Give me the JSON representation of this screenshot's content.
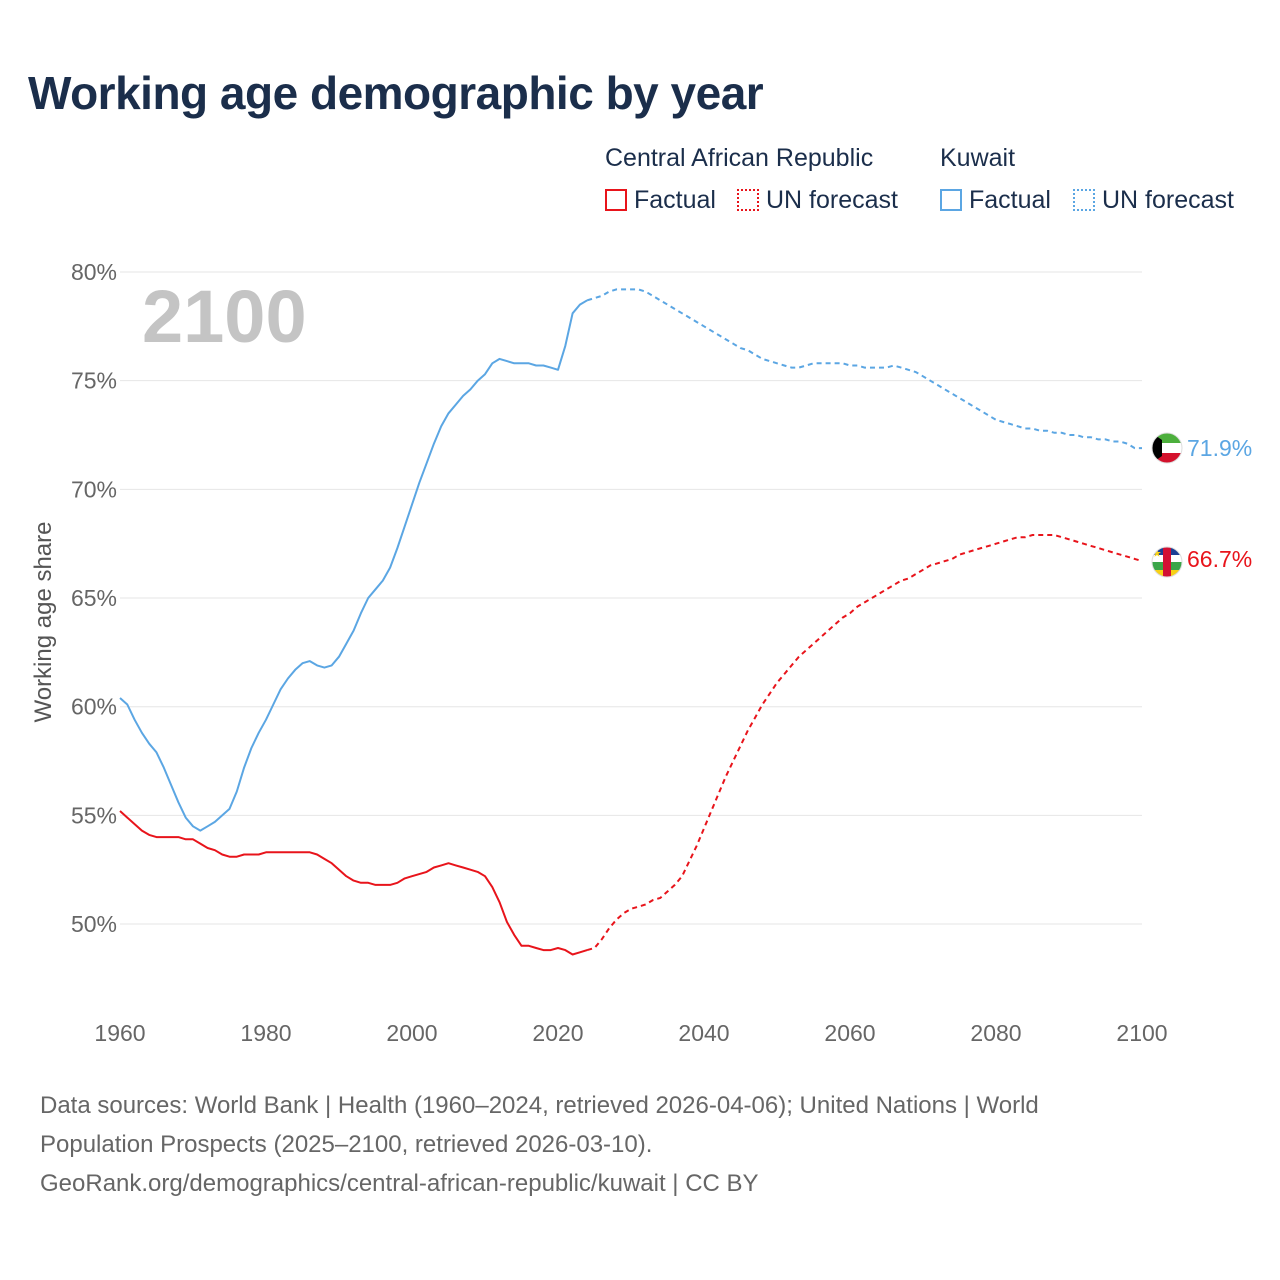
{
  "title": "Working age demographic by year",
  "legend": {
    "groups": [
      {
        "name": "Central African Republic",
        "factual_label": "Factual",
        "forecast_label": "UN forecast",
        "color": "#e8141b"
      },
      {
        "name": "Kuwait",
        "factual_label": "Factual",
        "forecast_label": "UN forecast",
        "color": "#5ba6e3"
      }
    ]
  },
  "year_watermark": "2100",
  "footer": {
    "line1": "Data sources: World Bank | Health (1960–2024, retrieved 2026-04-06); United Nations | World",
    "line2": "Population Prospects (2025–2100, retrieved 2026-03-10).",
    "line3": "GeoRank.org/demographics/central-african-republic/kuwait | CC BY"
  },
  "chart_data": {
    "type": "line",
    "title": "Working age demographic by year",
    "xlabel": "",
    "ylabel": "Working age share",
    "xlim": [
      1960,
      2100
    ],
    "ylim": [
      46,
      80
    ],
    "x_ticks": [
      1960,
      1980,
      2000,
      2020,
      2040,
      2060,
      2080,
      2100
    ],
    "y_ticks": [
      50,
      55,
      60,
      65,
      70,
      75,
      80
    ],
    "y_tick_labels": [
      "50%",
      "55%",
      "60%",
      "65%",
      "70%",
      "75%",
      "80%"
    ],
    "factual_range": [
      1960,
      2024
    ],
    "forecast_range": [
      2024,
      2100
    ],
    "series": [
      {
        "name": "Central African Republic",
        "color": "#e8141b",
        "end_label": "66.7%",
        "points": [
          [
            1960,
            55.2
          ],
          [
            1961,
            54.9
          ],
          [
            1962,
            54.6
          ],
          [
            1963,
            54.3
          ],
          [
            1964,
            54.1
          ],
          [
            1965,
            54.0
          ],
          [
            1966,
            54.0
          ],
          [
            1967,
            54.0
          ],
          [
            1968,
            54.0
          ],
          [
            1969,
            53.9
          ],
          [
            1970,
            53.9
          ],
          [
            1971,
            53.7
          ],
          [
            1972,
            53.5
          ],
          [
            1973,
            53.4
          ],
          [
            1974,
            53.2
          ],
          [
            1975,
            53.1
          ],
          [
            1976,
            53.1
          ],
          [
            1977,
            53.2
          ],
          [
            1978,
            53.2
          ],
          [
            1979,
            53.2
          ],
          [
            1980,
            53.3
          ],
          [
            1981,
            53.3
          ],
          [
            1982,
            53.3
          ],
          [
            1983,
            53.3
          ],
          [
            1984,
            53.3
          ],
          [
            1985,
            53.3
          ],
          [
            1986,
            53.3
          ],
          [
            1987,
            53.2
          ],
          [
            1988,
            53.0
          ],
          [
            1989,
            52.8
          ],
          [
            1990,
            52.5
          ],
          [
            1991,
            52.2
          ],
          [
            1992,
            52.0
          ],
          [
            1993,
            51.9
          ],
          [
            1994,
            51.9
          ],
          [
            1995,
            51.8
          ],
          [
            1996,
            51.8
          ],
          [
            1997,
            51.8
          ],
          [
            1998,
            51.9
          ],
          [
            1999,
            52.1
          ],
          [
            2000,
            52.2
          ],
          [
            2001,
            52.3
          ],
          [
            2002,
            52.4
          ],
          [
            2003,
            52.6
          ],
          [
            2004,
            52.7
          ],
          [
            2005,
            52.8
          ],
          [
            2006,
            52.7
          ],
          [
            2007,
            52.6
          ],
          [
            2008,
            52.5
          ],
          [
            2009,
            52.4
          ],
          [
            2010,
            52.2
          ],
          [
            2011,
            51.7
          ],
          [
            2012,
            51.0
          ],
          [
            2013,
            50.1
          ],
          [
            2014,
            49.5
          ],
          [
            2015,
            49.0
          ],
          [
            2016,
            49.0
          ],
          [
            2017,
            48.9
          ],
          [
            2018,
            48.8
          ],
          [
            2019,
            48.8
          ],
          [
            2020,
            48.9
          ],
          [
            2021,
            48.8
          ],
          [
            2022,
            48.6
          ],
          [
            2023,
            48.7
          ],
          [
            2024,
            48.8
          ],
          [
            2025,
            48.9
          ],
          [
            2026,
            49.3
          ],
          [
            2027,
            49.8
          ],
          [
            2028,
            50.2
          ],
          [
            2029,
            50.5
          ],
          [
            2030,
            50.7
          ],
          [
            2031,
            50.8
          ],
          [
            2032,
            50.9
          ],
          [
            2033,
            51.1
          ],
          [
            2034,
            51.2
          ],
          [
            2035,
            51.5
          ],
          [
            2036,
            51.8
          ],
          [
            2037,
            52.2
          ],
          [
            2038,
            52.9
          ],
          [
            2039,
            53.6
          ],
          [
            2040,
            54.4
          ],
          [
            2041,
            55.2
          ],
          [
            2042,
            56.0
          ],
          [
            2043,
            56.8
          ],
          [
            2044,
            57.5
          ],
          [
            2045,
            58.2
          ],
          [
            2046,
            58.9
          ],
          [
            2047,
            59.5
          ],
          [
            2048,
            60.1
          ],
          [
            2049,
            60.6
          ],
          [
            2050,
            61.1
          ],
          [
            2051,
            61.5
          ],
          [
            2052,
            61.9
          ],
          [
            2053,
            62.3
          ],
          [
            2054,
            62.6
          ],
          [
            2055,
            62.9
          ],
          [
            2056,
            63.2
          ],
          [
            2057,
            63.5
          ],
          [
            2058,
            63.8
          ],
          [
            2059,
            64.1
          ],
          [
            2060,
            64.3
          ],
          [
            2061,
            64.6
          ],
          [
            2062,
            64.8
          ],
          [
            2063,
            65.0
          ],
          [
            2064,
            65.2
          ],
          [
            2065,
            65.4
          ],
          [
            2066,
            65.6
          ],
          [
            2067,
            65.8
          ],
          [
            2068,
            65.9
          ],
          [
            2069,
            66.1
          ],
          [
            2070,
            66.3
          ],
          [
            2071,
            66.5
          ],
          [
            2072,
            66.6
          ],
          [
            2073,
            66.7
          ],
          [
            2074,
            66.8
          ],
          [
            2075,
            67.0
          ],
          [
            2076,
            67.1
          ],
          [
            2077,
            67.2
          ],
          [
            2078,
            67.3
          ],
          [
            2079,
            67.4
          ],
          [
            2080,
            67.5
          ],
          [
            2081,
            67.6
          ],
          [
            2082,
            67.7
          ],
          [
            2083,
            67.8
          ],
          [
            2084,
            67.8
          ],
          [
            2085,
            67.9
          ],
          [
            2086,
            67.9
          ],
          [
            2087,
            67.9
          ],
          [
            2088,
            67.9
          ],
          [
            2089,
            67.8
          ],
          [
            2090,
            67.7
          ],
          [
            2091,
            67.6
          ],
          [
            2092,
            67.5
          ],
          [
            2093,
            67.4
          ],
          [
            2094,
            67.3
          ],
          [
            2095,
            67.2
          ],
          [
            2096,
            67.1
          ],
          [
            2097,
            67.0
          ],
          [
            2098,
            66.9
          ],
          [
            2099,
            66.8
          ],
          [
            2100,
            66.7
          ]
        ]
      },
      {
        "name": "Kuwait",
        "color": "#5ba6e3",
        "end_label": "71.9%",
        "points": [
          [
            1960,
            60.4
          ],
          [
            1961,
            60.1
          ],
          [
            1962,
            59.4
          ],
          [
            1963,
            58.8
          ],
          [
            1964,
            58.3
          ],
          [
            1965,
            57.9
          ],
          [
            1966,
            57.2
          ],
          [
            1967,
            56.4
          ],
          [
            1968,
            55.6
          ],
          [
            1969,
            54.9
          ],
          [
            1970,
            54.5
          ],
          [
            1971,
            54.3
          ],
          [
            1972,
            54.5
          ],
          [
            1973,
            54.7
          ],
          [
            1974,
            55.0
          ],
          [
            1975,
            55.3
          ],
          [
            1976,
            56.1
          ],
          [
            1977,
            57.2
          ],
          [
            1978,
            58.1
          ],
          [
            1979,
            58.8
          ],
          [
            1980,
            59.4
          ],
          [
            1981,
            60.1
          ],
          [
            1982,
            60.8
          ],
          [
            1983,
            61.3
          ],
          [
            1984,
            61.7
          ],
          [
            1985,
            62.0
          ],
          [
            1986,
            62.1
          ],
          [
            1987,
            61.9
          ],
          [
            1988,
            61.8
          ],
          [
            1989,
            61.9
          ],
          [
            1990,
            62.3
          ],
          [
            1991,
            62.9
          ],
          [
            1992,
            63.5
          ],
          [
            1993,
            64.3
          ],
          [
            1994,
            65.0
          ],
          [
            1995,
            65.4
          ],
          [
            1996,
            65.8
          ],
          [
            1997,
            66.4
          ],
          [
            1998,
            67.3
          ],
          [
            1999,
            68.3
          ],
          [
            2000,
            69.3
          ],
          [
            2001,
            70.3
          ],
          [
            2002,
            71.2
          ],
          [
            2003,
            72.1
          ],
          [
            2004,
            72.9
          ],
          [
            2005,
            73.5
          ],
          [
            2006,
            73.9
          ],
          [
            2007,
            74.3
          ],
          [
            2008,
            74.6
          ],
          [
            2009,
            75.0
          ],
          [
            2010,
            75.3
          ],
          [
            2011,
            75.8
          ],
          [
            2012,
            76.0
          ],
          [
            2013,
            75.9
          ],
          [
            2014,
            75.8
          ],
          [
            2015,
            75.8
          ],
          [
            2016,
            75.8
          ],
          [
            2017,
            75.7
          ],
          [
            2018,
            75.7
          ],
          [
            2019,
            75.6
          ],
          [
            2020,
            75.5
          ],
          [
            2021,
            76.6
          ],
          [
            2022,
            78.1
          ],
          [
            2023,
            78.5
          ],
          [
            2024,
            78.7
          ],
          [
            2025,
            78.8
          ],
          [
            2026,
            78.9
          ],
          [
            2027,
            79.1
          ],
          [
            2028,
            79.2
          ],
          [
            2029,
            79.2
          ],
          [
            2030,
            79.2
          ],
          [
            2031,
            79.2
          ],
          [
            2032,
            79.1
          ],
          [
            2033,
            78.9
          ],
          [
            2034,
            78.7
          ],
          [
            2035,
            78.5
          ],
          [
            2036,
            78.3
          ],
          [
            2037,
            78.1
          ],
          [
            2038,
            77.9
          ],
          [
            2039,
            77.7
          ],
          [
            2040,
            77.5
          ],
          [
            2041,
            77.3
          ],
          [
            2042,
            77.1
          ],
          [
            2043,
            76.9
          ],
          [
            2044,
            76.7
          ],
          [
            2045,
            76.5
          ],
          [
            2046,
            76.4
          ],
          [
            2047,
            76.2
          ],
          [
            2048,
            76.0
          ],
          [
            2049,
            75.9
          ],
          [
            2050,
            75.8
          ],
          [
            2051,
            75.7
          ],
          [
            2052,
            75.6
          ],
          [
            2053,
            75.6
          ],
          [
            2054,
            75.7
          ],
          [
            2055,
            75.8
          ],
          [
            2056,
            75.8
          ],
          [
            2057,
            75.8
          ],
          [
            2058,
            75.8
          ],
          [
            2059,
            75.8
          ],
          [
            2060,
            75.7
          ],
          [
            2061,
            75.7
          ],
          [
            2062,
            75.6
          ],
          [
            2063,
            75.6
          ],
          [
            2064,
            75.6
          ],
          [
            2065,
            75.6
          ],
          [
            2066,
            75.7
          ],
          [
            2067,
            75.6
          ],
          [
            2068,
            75.5
          ],
          [
            2069,
            75.4
          ],
          [
            2070,
            75.2
          ],
          [
            2071,
            75.0
          ],
          [
            2072,
            74.8
          ],
          [
            2073,
            74.6
          ],
          [
            2074,
            74.4
          ],
          [
            2075,
            74.2
          ],
          [
            2076,
            74.0
          ],
          [
            2077,
            73.8
          ],
          [
            2078,
            73.6
          ],
          [
            2079,
            73.4
          ],
          [
            2080,
            73.2
          ],
          [
            2081,
            73.1
          ],
          [
            2082,
            73.0
          ],
          [
            2083,
            72.9
          ],
          [
            2084,
            72.8
          ],
          [
            2085,
            72.8
          ],
          [
            2086,
            72.7
          ],
          [
            2087,
            72.7
          ],
          [
            2088,
            72.6
          ],
          [
            2089,
            72.6
          ],
          [
            2090,
            72.5
          ],
          [
            2091,
            72.5
          ],
          [
            2092,
            72.4
          ],
          [
            2093,
            72.4
          ],
          [
            2094,
            72.3
          ],
          [
            2095,
            72.3
          ],
          [
            2096,
            72.2
          ],
          [
            2097,
            72.2
          ],
          [
            2098,
            72.1
          ],
          [
            2099,
            71.9
          ],
          [
            2100,
            71.9
          ]
        ]
      }
    ]
  }
}
